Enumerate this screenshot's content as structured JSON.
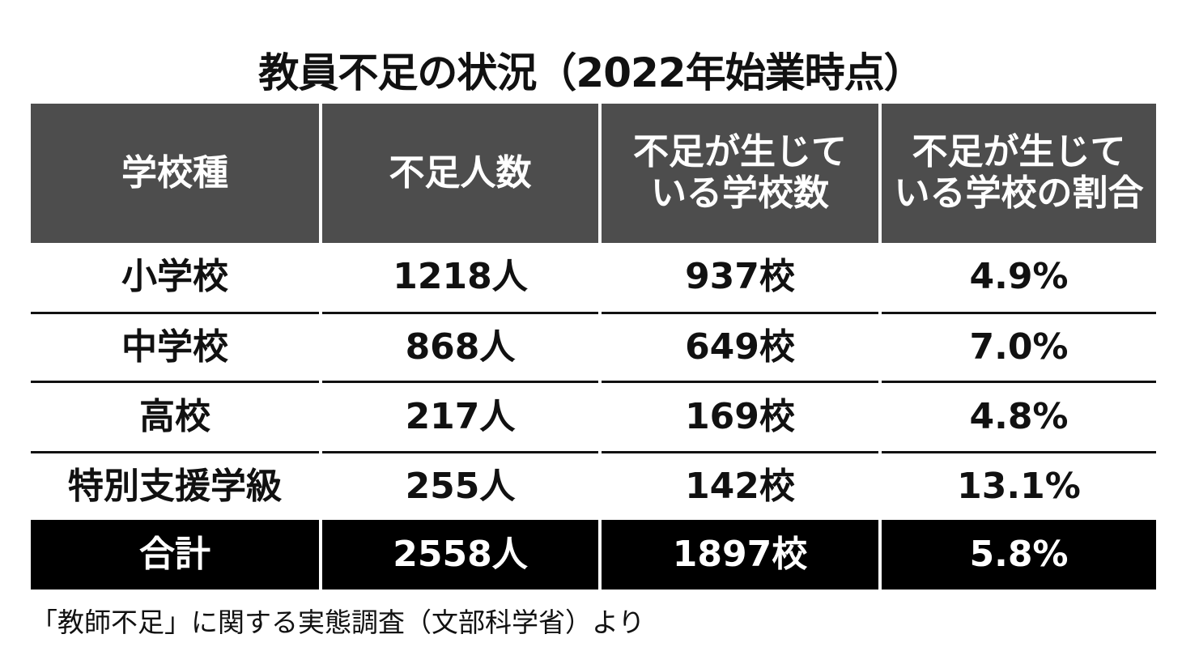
{
  "title": "教員不足の状況（2022年始業時点）",
  "table": {
    "header": [
      "学校種",
      "不足人数",
      "不足が生じて\nいる学校数",
      "不足が生じて\nいる学校の割合"
    ],
    "rows": [
      [
        "小学校",
        "1218人",
        "937校",
        "4.9%"
      ],
      [
        "中学校",
        "868人",
        "649校",
        "7.0%"
      ],
      [
        "高校",
        "217人",
        "169校",
        "4.8%"
      ],
      [
        "特別支援学級",
        "255人",
        "142校",
        "13.1%"
      ]
    ],
    "total": [
      "合計",
      "2558人",
      "1897校",
      "5.8%"
    ]
  },
  "source": "「教師不足」に関する実態調査（文部科学省）より"
}
